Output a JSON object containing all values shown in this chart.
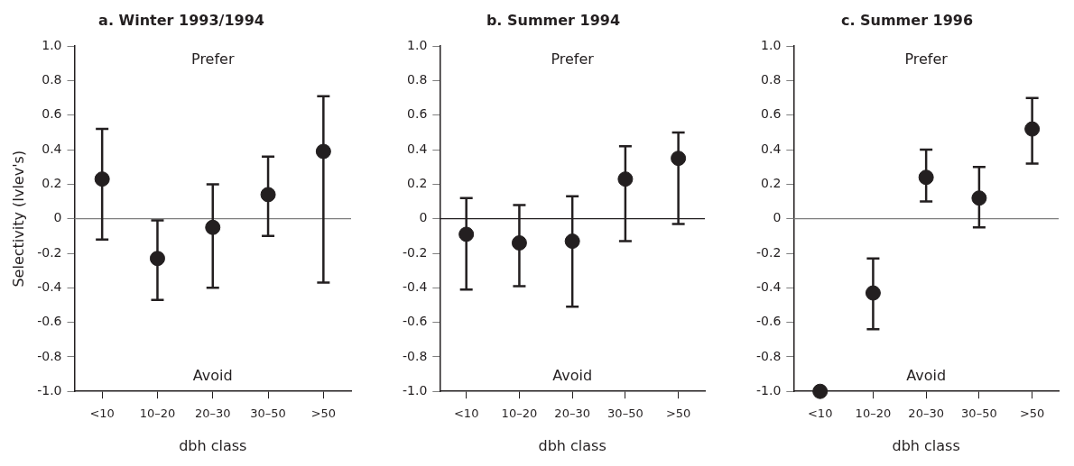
{
  "chart_data": [
    {
      "type": "scatter",
      "title": "a. Winter 1993/1994",
      "xlabel": "dbh class",
      "ylabel": "Selectivity (Ivlev's)",
      "categories": [
        "<10",
        "10–20",
        "20–30",
        "30–50",
        ">50"
      ],
      "series": [
        {
          "color": "#231f20",
          "values": [
            0.23,
            -0.23,
            -0.05,
            0.14,
            0.39
          ],
          "errors": [
            [
              -0.12,
              0.52
            ],
            [
              -0.47,
              -0.01
            ],
            [
              -0.4,
              0.2
            ],
            [
              -0.1,
              0.36
            ],
            [
              -0.37,
              0.71
            ]
          ]
        }
      ],
      "ylim": [
        -1,
        1
      ],
      "yticks": [
        {
          "value": -1,
          "label": "-1.0"
        },
        {
          "value": -0.8,
          "label": "-0.8"
        },
        {
          "value": -0.6,
          "label": "-0.6"
        },
        {
          "value": -0.4,
          "label": "-0.4"
        },
        {
          "value": -0.2,
          "label": "-0.2"
        },
        {
          "value": 0,
          "label": "0"
        },
        {
          "value": 0.2,
          "label": "0.2"
        },
        {
          "value": 0.4,
          "label": "0.4"
        },
        {
          "value": 0.6,
          "label": "0.6"
        },
        {
          "value": 0.8,
          "label": "0.8"
        },
        {
          "value": 1,
          "label": "1.0"
        }
      ],
      "ref_lines": [
        {
          "axis": "y",
          "value": 0,
          "color": "#7f7f7f"
        }
      ],
      "annotations": [
        "Prefer",
        "Avoid"
      ],
      "marker": "circle",
      "grid": false,
      "legend": false
    },
    {
      "type": "scatter",
      "title": "b. Summer 1994",
      "xlabel": "dbh class",
      "categories": [
        "<10",
        "10–20",
        "20–30",
        "30–50",
        ">50"
      ],
      "series": [
        {
          "color": "#231f20",
          "values": [
            -0.09,
            -0.14,
            -0.13,
            0.23,
            0.35
          ],
          "errors": [
            [
              -0.41,
              0.12
            ],
            [
              -0.39,
              0.08
            ],
            [
              -0.51,
              0.13
            ],
            [
              -0.13,
              0.42
            ],
            [
              -0.03,
              0.5
            ]
          ]
        }
      ],
      "ylim": [
        -1,
        1
      ],
      "yticks": [
        {
          "value": -1,
          "label": "-1.0"
        },
        {
          "value": -0.8,
          "label": "-0.8"
        },
        {
          "value": -0.6,
          "label": "-0.6"
        },
        {
          "value": -0.4,
          "label": "-0.4"
        },
        {
          "value": -0.2,
          "label": "-0.2"
        },
        {
          "value": 0,
          "label": "0"
        },
        {
          "value": 0.2,
          "label": "0.2"
        },
        {
          "value": 0.4,
          "label": "0.4"
        },
        {
          "value": 0.6,
          "label": "0.6"
        },
        {
          "value": 0.8,
          "label": "0.8"
        },
        {
          "value": 1,
          "label": "1.0"
        }
      ],
      "ref_lines": [
        {
          "axis": "y",
          "value": 0,
          "color": "#231f20"
        }
      ],
      "annotations": [
        "Prefer",
        "Avoid"
      ],
      "marker": "circle",
      "grid": false,
      "legend": false
    },
    {
      "type": "scatter",
      "title": "c. Summer 1996",
      "xlabel": "dbh class",
      "categories": [
        "<10",
        "10–20",
        "20–30",
        "30–50",
        ">50"
      ],
      "series": [
        {
          "color": "#231f20",
          "values": [
            -1,
            -0.43,
            0.24,
            0.12,
            0.52
          ],
          "errors": [
            null,
            [
              -0.64,
              -0.23
            ],
            [
              0.1,
              0.4
            ],
            [
              -0.05,
              0.3
            ],
            [
              0.32,
              0.7
            ]
          ]
        }
      ],
      "ylim": [
        -1,
        1
      ],
      "yticks": [
        {
          "value": -1,
          "label": "-1.0"
        },
        {
          "value": -0.8,
          "label": "-0.8"
        },
        {
          "value": -0.6,
          "label": "-0.6"
        },
        {
          "value": -0.4,
          "label": "-0.4"
        },
        {
          "value": -0.2,
          "label": "-0.2"
        },
        {
          "value": 0,
          "label": "0"
        },
        {
          "value": 0.2,
          "label": "0.2"
        },
        {
          "value": 0.4,
          "label": "0.4"
        },
        {
          "value": 0.6,
          "label": "0.6"
        },
        {
          "value": 0.8,
          "label": "0.8"
        },
        {
          "value": 1,
          "label": "1.0"
        }
      ],
      "ref_lines": [
        {
          "axis": "y",
          "value": 0,
          "color": "#7f7f7f"
        }
      ],
      "annotations": [
        "Prefer",
        "Avoid"
      ],
      "marker": "circle",
      "grid": false,
      "legend": false
    }
  ]
}
